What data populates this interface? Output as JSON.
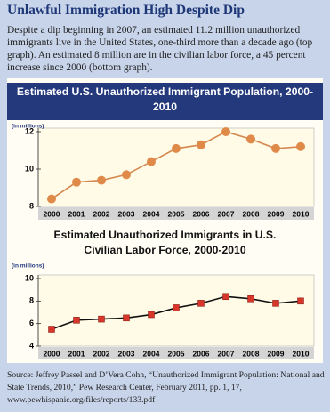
{
  "title": "Unlawful Immigration High Despite Dip",
  "text": "Despite a dip beginning in 2007, an estimated 11.2 million unauthorized immigrants live in the United States, one-third more than a decade ago (top graph). An estimated 8 million are in the civilian labor force, a 45 percent increase since 2000 (bottom graph).",
  "chart_data": [
    {
      "type": "line",
      "title": "Estimated U.S. Unauthorized Immigrant Population, 2000-2010",
      "y_label": "(in millions)",
      "categories": [
        "2000",
        "2001",
        "2002",
        "2003",
        "2004",
        "2005",
        "2006",
        "2007",
        "2008",
        "2009",
        "2010"
      ],
      "values": [
        8.4,
        9.3,
        9.4,
        9.7,
        10.4,
        11.1,
        11.3,
        12.0,
        11.6,
        11.1,
        11.2
      ],
      "color": "#d4884f",
      "marker": "circle",
      "marker_color": "#e08a4a",
      "ylim": [
        8,
        12
      ],
      "yticks": [
        8,
        10,
        12
      ]
    },
    {
      "type": "line",
      "title": "Estimated Unauthorized Immigrants in U.S. Civilian Labor Force, 2000-2010",
      "y_label": "(in millions)",
      "categories": [
        "2000",
        "2001",
        "2002",
        "2003",
        "2004",
        "2005",
        "2006",
        "2007",
        "2008",
        "2009",
        "2010"
      ],
      "values": [
        5.5,
        6.3,
        6.4,
        6.5,
        6.8,
        7.4,
        7.8,
        8.4,
        8.2,
        7.8,
        8.0
      ],
      "color": "#111111",
      "marker": "square",
      "marker_color": "#d8362a",
      "ylim": [
        4,
        10
      ],
      "yticks": [
        4,
        6,
        8,
        10
      ]
    }
  ],
  "source": "Source: Jeffrey Passel and D’Vera Cohn, “Unauthorized Immigrant Population: National and State Trends, 2010,” Pew Research Center, February 2011, pp. 1, 17, www.pewhispanic.org/files/reports/133.pdf"
}
